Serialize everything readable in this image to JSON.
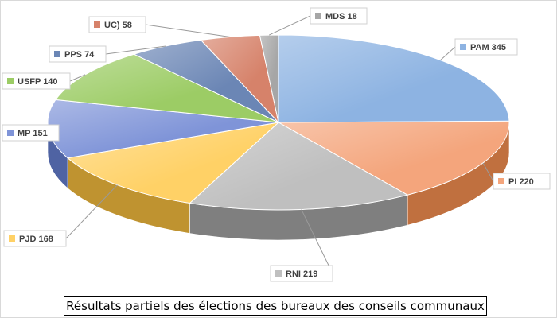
{
  "caption": "Résultats partiels des élections des bureaux des conseils communaux",
  "chart_data": {
    "type": "pie",
    "title": "Résultats partiels des élections des bureaux des conseils communaux",
    "style": "3d-exploded",
    "categories": [
      "PAM",
      "PI",
      "RNI",
      "PJD",
      "MP",
      "USFP",
      "PPS",
      "UC)",
      "MDS"
    ],
    "values": [
      345,
      220,
      219,
      168,
      151,
      140,
      74,
      58,
      18
    ],
    "colors": [
      "#8db3e2",
      "#f4a57c",
      "#bfbfbf",
      "#ffd166",
      "#7f94d8",
      "#9ccc65",
      "#6b86b5",
      "#d6826a",
      "#a6a6a6"
    ],
    "dark_colors": [
      "#5b7fae",
      "#c0703f",
      "#7f7f7f",
      "#bf9330",
      "#4f63a3",
      "#6a9a3a",
      "#46608a",
      "#a45a45",
      "#7a7a7a"
    ],
    "labels": [
      "PAM  345",
      "PI  220",
      "RNI  219",
      "PJD  168",
      "MP  151",
      "USFP  140",
      "PPS  74",
      "UC)  58",
      "MDS  18"
    ]
  }
}
